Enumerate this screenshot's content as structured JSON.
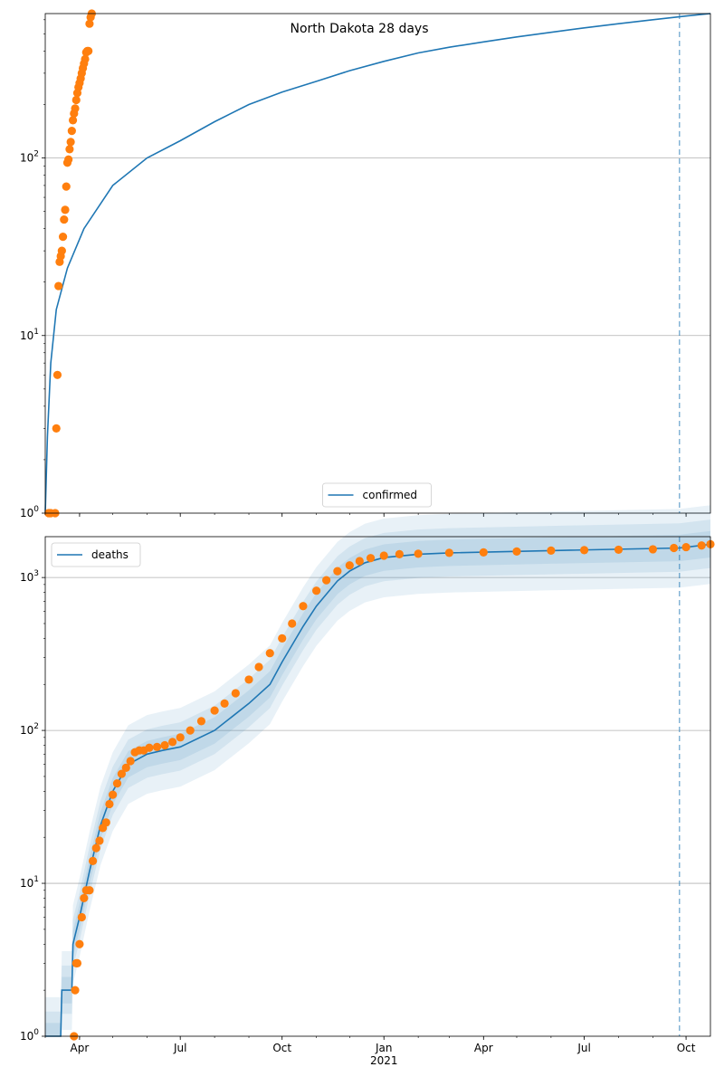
{
  "figure_title": "North Dakota 28 days",
  "chart_data": [
    {
      "type": "scatter",
      "name": "top-panel",
      "title": "North Dakota 28 days",
      "yscale": "log",
      "ylim": [
        1,
        650
      ],
      "xlim": [
        "2020-03-01",
        "2021-10-23"
      ],
      "grid": "y-major",
      "legend_placement": "lower center",
      "x_tick_labels": [
        "Apr",
        "Jul",
        "Oct",
        "Jan",
        "Apr",
        "Jul",
        "Oct"
      ],
      "x_tick_dates": [
        "2020-04-01",
        "2020-07-01",
        "2020-10-01",
        "2021-01-01",
        "2021-04-01",
        "2021-07-01",
        "2021-10-01"
      ],
      "x_year_label": "2021",
      "y_tick_labels": [
        "10^0",
        "10^1",
        "10^2"
      ],
      "forecast_line_date": "2021-09-25",
      "series": [
        {
          "name": "confirmed",
          "kind": "line",
          "x": [
            "2020-03-01",
            "2020-03-03",
            "2020-03-06",
            "2020-03-11",
            "2020-03-21",
            "2020-04-05",
            "2020-05-01",
            "2020-06-01",
            "2020-07-01",
            "2020-08-01",
            "2020-09-01",
            "2020-10-01",
            "2020-11-01",
            "2020-12-01",
            "2021-01-01",
            "2021-02-01",
            "2021-03-01",
            "2021-04-01",
            "2021-05-01",
            "2021-06-01",
            "2021-07-01",
            "2021-08-01",
            "2021-09-01",
            "2021-10-01",
            "2021-10-23"
          ],
          "y": [
            1,
            2.7,
            7,
            14,
            24,
            40,
            70,
            100,
            125,
            160,
            200,
            235,
            270,
            310,
            350,
            390,
            420,
            450,
            480,
            510,
            540,
            570,
            600,
            630,
            650
          ]
        },
        {
          "kind": "points",
          "x": [
            "2020-03-04",
            "2020-03-05",
            "2020-03-06",
            "2020-03-10",
            "2020-03-11",
            "2020-03-12",
            "2020-03-13",
            "2020-03-14",
            "2020-03-15",
            "2020-03-16",
            "2020-03-17",
            "2020-03-18",
            "2020-03-19",
            "2020-03-20",
            "2020-03-21",
            "2020-03-22",
            "2020-03-23",
            "2020-03-24",
            "2020-03-25",
            "2020-03-26",
            "2020-03-27",
            "2020-03-28",
            "2020-03-29",
            "2020-03-30",
            "2020-03-31",
            "2020-04-01",
            "2020-04-02",
            "2020-04-03",
            "2020-04-04",
            "2020-04-05",
            "2020-04-06",
            "2020-04-07",
            "2020-04-08",
            "2020-04-09",
            "2020-04-10",
            "2020-04-11",
            "2020-04-12"
          ],
          "y": [
            1,
            1,
            1,
            1,
            3,
            6,
            19,
            26,
            28,
            30,
            36,
            45,
            51,
            69,
            94,
            98,
            112,
            123,
            142,
            163,
            178,
            190,
            212,
            232,
            250,
            264,
            280,
            300,
            320,
            340,
            360,
            393,
            400,
            400,
            570,
            620,
            650
          ]
        }
      ]
    },
    {
      "type": "scatter",
      "name": "bottom-panel",
      "yscale": "log",
      "ylim": [
        1,
        1850
      ],
      "xlim": [
        "2020-03-01",
        "2021-10-23"
      ],
      "grid": "y-major",
      "legend_placement": "upper left",
      "x_tick_labels": [
        "Apr",
        "Jul",
        "Oct",
        "Jan",
        "Apr",
        "Jul",
        "Oct"
      ],
      "x_tick_dates": [
        "2020-04-01",
        "2020-07-01",
        "2020-10-01",
        "2021-01-01",
        "2021-04-01",
        "2021-07-01",
        "2021-10-01"
      ],
      "x_year_label": "2021",
      "y_tick_labels": [
        "10^1",
        "10^2",
        "10^3"
      ],
      "forecast_line_date": "2021-09-25",
      "series": [
        {
          "name": "deaths",
          "kind": "line",
          "x": [
            "2020-03-01",
            "2020-03-15",
            "2020-03-16",
            "2020-03-25",
            "2020-03-26",
            "2020-04-01",
            "2020-04-10",
            "2020-04-20",
            "2020-05-01",
            "2020-05-15",
            "2020-06-01",
            "2020-06-15",
            "2020-07-01",
            "2020-08-01",
            "2020-09-01",
            "2020-09-20",
            "2020-10-01",
            "2020-10-20",
            "2020-11-01",
            "2020-11-20",
            "2020-12-01",
            "2020-12-15",
            "2021-01-01",
            "2021-02-01",
            "2021-03-01",
            "2021-06-01",
            "2021-09-25",
            "2021-10-23"
          ],
          "y": [
            1,
            1,
            2,
            2,
            4,
            6,
            12,
            24,
            40,
            60,
            70,
            74,
            78,
            100,
            150,
            200,
            280,
            480,
            650,
            950,
            1100,
            1250,
            1350,
            1420,
            1450,
            1500,
            1560,
            1650
          ]
        },
        {
          "kind": "points",
          "x": [
            "2020-03-27",
            "2020-03-28",
            "2020-03-29",
            "2020-03-30",
            "2020-04-01",
            "2020-04-03",
            "2020-04-05",
            "2020-04-07",
            "2020-04-10",
            "2020-04-13",
            "2020-04-16",
            "2020-04-19",
            "2020-04-22",
            "2020-04-25",
            "2020-04-28",
            "2020-05-01",
            "2020-05-05",
            "2020-05-09",
            "2020-05-13",
            "2020-05-17",
            "2020-05-21",
            "2020-05-25",
            "2020-05-29",
            "2020-06-03",
            "2020-06-10",
            "2020-06-17",
            "2020-06-24",
            "2020-07-01",
            "2020-07-10",
            "2020-07-20",
            "2020-08-01",
            "2020-08-10",
            "2020-08-20",
            "2020-09-01",
            "2020-09-10",
            "2020-09-20",
            "2020-10-01",
            "2020-10-10",
            "2020-10-20",
            "2020-11-01",
            "2020-11-10",
            "2020-11-20",
            "2020-12-01",
            "2020-12-10",
            "2020-12-20",
            "2021-01-01",
            "2021-01-15",
            "2021-02-01",
            "2021-03-01",
            "2021-04-01",
            "2021-05-01",
            "2021-06-01",
            "2021-07-01",
            "2021-08-01",
            "2021-09-01",
            "2021-09-20",
            "2021-10-01",
            "2021-10-15",
            "2021-10-23"
          ],
          "y": [
            1,
            2,
            3,
            3,
            4,
            6,
            8,
            9,
            9,
            14,
            17,
            19,
            23,
            25,
            33,
            38,
            45,
            52,
            57,
            63,
            72,
            74,
            74,
            77,
            78,
            80,
            84,
            90,
            100,
            115,
            135,
            150,
            175,
            215,
            260,
            320,
            400,
            500,
            650,
            820,
            960,
            1100,
            1200,
            1280,
            1340,
            1390,
            1420,
            1430,
            1450,
            1460,
            1480,
            1500,
            1510,
            1520,
            1530,
            1560,
            1580,
            1620,
            1650
          ]
        }
      ]
    }
  ]
}
